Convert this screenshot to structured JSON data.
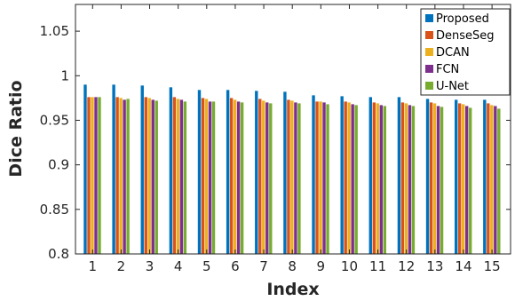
{
  "chart_data": {
    "type": "bar",
    "title": "",
    "xlabel": "Index",
    "ylabel": "Dice Ratio",
    "ylim": [
      0.8,
      1.08
    ],
    "yticks": [
      "0.8",
      "0.85",
      "0.9",
      "0.95",
      "1",
      "1.05"
    ],
    "yticks_values": [
      0.8,
      0.85,
      0.9,
      0.95,
      1.0,
      1.05
    ],
    "categories": [
      "1",
      "2",
      "3",
      "4",
      "5",
      "6",
      "7",
      "8",
      "9",
      "10",
      "11",
      "12",
      "13",
      "14",
      "15"
    ],
    "grid": false,
    "legend_position": "top-right",
    "series": [
      {
        "name": "Proposed",
        "color": "#0072bd",
        "values": [
          0.99,
          0.99,
          0.989,
          0.987,
          0.984,
          0.984,
          0.983,
          0.982,
          0.978,
          0.977,
          0.976,
          0.976,
          0.974,
          0.973,
          0.973
        ]
      },
      {
        "name": "DenseSeg",
        "color": "#d95319",
        "values": [
          0.976,
          0.976,
          0.976,
          0.976,
          0.975,
          0.975,
          0.974,
          0.973,
          0.971,
          0.971,
          0.97,
          0.97,
          0.97,
          0.969,
          0.969
        ]
      },
      {
        "name": "DCAN",
        "color": "#edb120",
        "values": [
          0.976,
          0.975,
          0.975,
          0.974,
          0.974,
          0.973,
          0.972,
          0.972,
          0.971,
          0.97,
          0.969,
          0.969,
          0.969,
          0.968,
          0.967
        ]
      },
      {
        "name": "FCN",
        "color": "#7e2f8e",
        "values": [
          0.976,
          0.973,
          0.973,
          0.973,
          0.971,
          0.971,
          0.97,
          0.97,
          0.97,
          0.968,
          0.967,
          0.967,
          0.966,
          0.966,
          0.966
        ]
      },
      {
        "name": "U-Net",
        "color": "#77ac30",
        "values": [
          0.976,
          0.974,
          0.972,
          0.971,
          0.971,
          0.97,
          0.969,
          0.969,
          0.968,
          0.967,
          0.966,
          0.966,
          0.965,
          0.964,
          0.963
        ]
      }
    ]
  }
}
